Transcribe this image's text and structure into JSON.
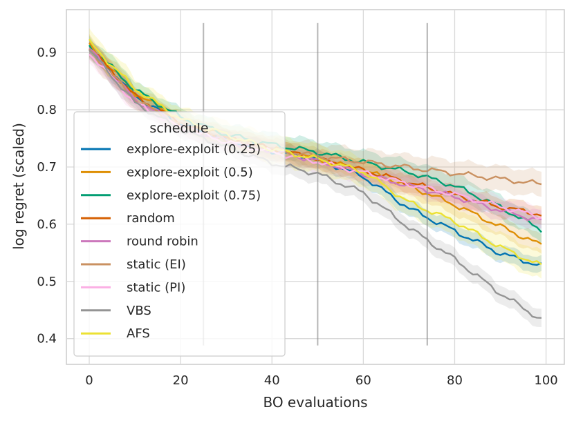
{
  "chart_data": {
    "type": "line",
    "title": "",
    "xlabel": "BO evaluations",
    "ylabel": "log regret (scaled)",
    "xlim": [
      -5,
      104
    ],
    "ylim": [
      0.355,
      0.975
    ],
    "xticks": [
      0,
      20,
      40,
      60,
      80,
      100
    ],
    "yticks": [
      0.4,
      0.5,
      0.6,
      0.7,
      0.8,
      0.9
    ],
    "grid": true,
    "legend": {
      "title": "schedule",
      "placement": "center-left"
    },
    "vertical_markers": [
      25,
      50,
      74
    ],
    "vertical_marker_range": [
      0.388,
      0.952
    ],
    "series": [
      {
        "name": "explore-exploit (0.25)",
        "color": "#0173b2",
        "x": [
          0,
          10,
          20,
          30,
          40,
          50,
          60,
          70,
          80,
          90,
          99
        ],
        "y": [
          0.907,
          0.825,
          0.775,
          0.748,
          0.728,
          0.714,
          0.683,
          0.628,
          0.588,
          0.549,
          0.527
        ],
        "band": 0.014
      },
      {
        "name": "explore-exploit (0.5)",
        "color": "#de8f05",
        "x": [
          0,
          10,
          20,
          30,
          40,
          50,
          60,
          70,
          80,
          90,
          99
        ],
        "y": [
          0.912,
          0.829,
          0.783,
          0.752,
          0.732,
          0.714,
          0.694,
          0.667,
          0.634,
          0.596,
          0.563
        ],
        "band": 0.017
      },
      {
        "name": "explore-exploit (0.75)",
        "color": "#029e73",
        "x": [
          0,
          10,
          20,
          30,
          40,
          50,
          60,
          70,
          80,
          90,
          99
        ],
        "y": [
          0.912,
          0.835,
          0.787,
          0.757,
          0.739,
          0.726,
          0.708,
          0.691,
          0.667,
          0.63,
          0.59
        ],
        "band": 0.02
      },
      {
        "name": "random",
        "color": "#d55e00",
        "x": [
          0,
          10,
          20,
          30,
          40,
          50,
          60,
          70,
          80,
          90,
          99
        ],
        "y": [
          0.909,
          0.824,
          0.776,
          0.75,
          0.732,
          0.714,
          0.694,
          0.673,
          0.651,
          0.63,
          0.617
        ],
        "band": 0.016
      },
      {
        "name": "round robin",
        "color": "#cc78bc",
        "x": [
          0,
          10,
          20,
          30,
          40,
          50,
          60,
          70,
          80,
          90,
          99
        ],
        "y": [
          0.907,
          0.818,
          0.772,
          0.745,
          0.728,
          0.711,
          0.688,
          0.667,
          0.648,
          0.624,
          0.606
        ],
        "band": 0.016
      },
      {
        "name": "static (EI)",
        "color": "#ca9161",
        "x": [
          0,
          10,
          20,
          30,
          40,
          50,
          60,
          70,
          80,
          90,
          99
        ],
        "y": [
          0.905,
          0.818,
          0.773,
          0.748,
          0.731,
          0.719,
          0.709,
          0.699,
          0.689,
          0.679,
          0.67
        ],
        "band": 0.022
      },
      {
        "name": "static (PI)",
        "color": "#fbafe4",
        "x": [
          0,
          10,
          20,
          30,
          40,
          50,
          60,
          70,
          80,
          90,
          99
        ],
        "y": [
          0.9,
          0.812,
          0.768,
          0.744,
          0.726,
          0.709,
          0.69,
          0.67,
          0.652,
          0.631,
          0.612
        ],
        "band": 0.017
      },
      {
        "name": "VBS",
        "color": "#949494",
        "x": [
          0,
          10,
          20,
          30,
          40,
          50,
          60,
          70,
          80,
          90,
          99
        ],
        "y": [
          0.905,
          0.812,
          0.765,
          0.735,
          0.707,
          0.688,
          0.655,
          0.594,
          0.539,
          0.479,
          0.433
        ],
        "band": 0.016
      },
      {
        "name": "AFS",
        "color": "#ece133",
        "x": [
          0,
          10,
          20,
          30,
          40,
          50,
          60,
          70,
          80,
          90,
          99
        ],
        "y": [
          0.918,
          0.837,
          0.784,
          0.757,
          0.731,
          0.714,
          0.692,
          0.638,
          0.605,
          0.56,
          0.527
        ],
        "band": 0.025
      }
    ]
  }
}
